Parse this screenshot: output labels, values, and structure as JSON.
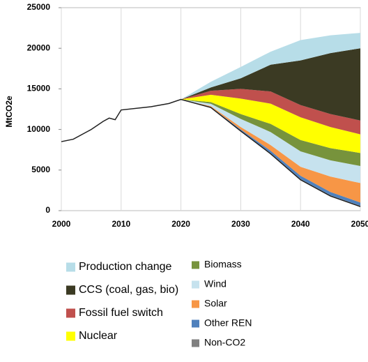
{
  "chart_data": {
    "type": "stacked-area",
    "y_label": "MtCO2e",
    "x": [
      2000,
      2002,
      2005,
      2007,
      2008,
      2009,
      2010,
      2015,
      2018,
      2020,
      2025,
      2030,
      2035,
      2040,
      2045,
      2050
    ],
    "pathway": [
      8500,
      8800,
      10000,
      11000,
      11400,
      11200,
      12400,
      12800,
      13200,
      13700,
      12700,
      9800,
      7000,
      3800,
      1800,
      500
    ],
    "pathway_color": "#1f1f1f",
    "series": [
      {
        "name": "Non-CO2",
        "color": "#808080",
        "values": [
          null,
          null,
          null,
          null,
          null,
          null,
          null,
          null,
          null,
          0,
          20,
          50,
          80,
          100,
          100,
          100
        ]
      },
      {
        "name": "Other REN",
        "color": "#4f81bd",
        "values": [
          null,
          null,
          null,
          null,
          null,
          null,
          null,
          null,
          null,
          0,
          50,
          150,
          300,
          400,
          400,
          400
        ]
      },
      {
        "name": "Solar",
        "color": "#f79646",
        "values": [
          null,
          null,
          null,
          null,
          null,
          null,
          null,
          null,
          null,
          0,
          100,
          300,
          700,
          1100,
          1900,
          2400
        ]
      },
      {
        "name": "Wind",
        "color": "#c6e2ee",
        "values": [
          null,
          null,
          null,
          null,
          null,
          null,
          null,
          null,
          null,
          0,
          300,
          1000,
          1600,
          1900,
          2000,
          2100
        ]
      },
      {
        "name": "Biomass",
        "color": "#77933c",
        "values": [
          null,
          null,
          null,
          null,
          null,
          null,
          null,
          null,
          null,
          0,
          200,
          600,
          1000,
          1400,
          1500,
          1600
        ]
      },
      {
        "name": "Nuclear",
        "color": "#ffff00",
        "values": [
          null,
          null,
          null,
          null,
          null,
          null,
          null,
          null,
          null,
          0,
          900,
          1900,
          2500,
          2800,
          2600,
          2300
        ]
      },
      {
        "name": "Fossil fuel switch",
        "color": "#c0504d",
        "values": [
          null,
          null,
          null,
          null,
          null,
          null,
          null,
          null,
          null,
          0,
          500,
          1200,
          1500,
          1500,
          1600,
          1700
        ]
      },
      {
        "name": "CCS (coal, gas, bio)",
        "color": "#3b3a23",
        "values": [
          null,
          null,
          null,
          null,
          null,
          null,
          null,
          null,
          null,
          0,
          400,
          1300,
          3300,
          5500,
          7500,
          8900
        ]
      },
      {
        "name": "Production change",
        "color": "#b7dde8",
        "values": [
          null,
          null,
          null,
          null,
          null,
          null,
          null,
          null,
          null,
          0,
          700,
          1400,
          1600,
          2500,
          2200,
          1900
        ]
      }
    ],
    "xlim": [
      2000,
      2050
    ],
    "xticks": [
      2000,
      2010,
      2020,
      2030,
      2040,
      2050
    ],
    "ylim": [
      0,
      25000
    ],
    "yticks": [
      0,
      5000,
      10000,
      15000,
      20000,
      25000
    ],
    "grid": "x"
  }
}
